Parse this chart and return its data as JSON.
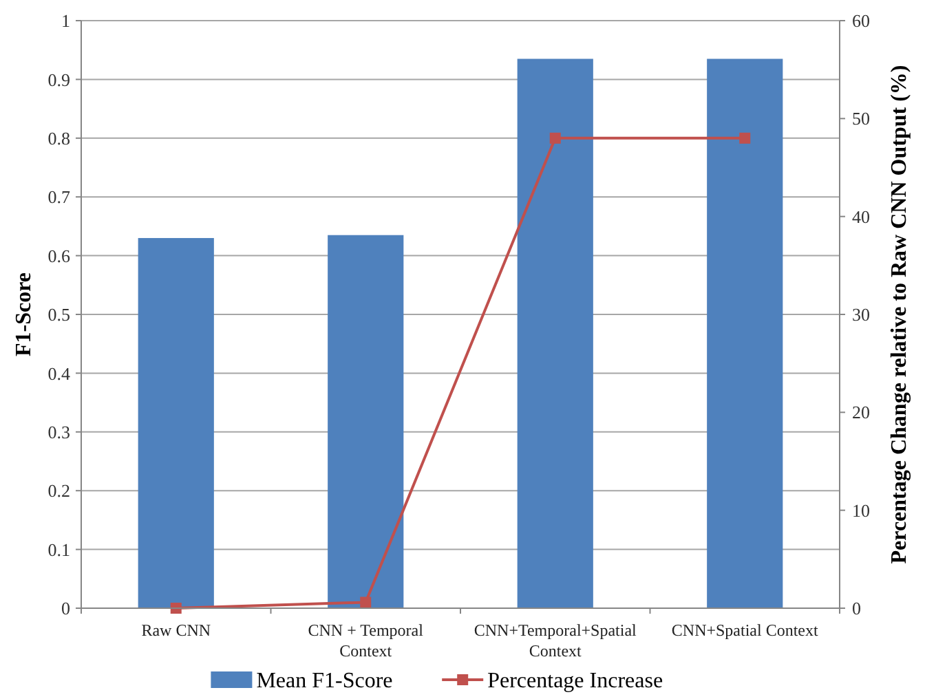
{
  "chart_data": {
    "type": "bar",
    "ylabel": "F1-Score",
    "y2label": "Percentage Change relative to Raw CNN Output (%)",
    "categories": [
      "Raw CNN",
      "CNN + Temporal Context",
      "CNN+Temporal+Spatial Context",
      "CNN+Spatial Context"
    ],
    "series": [
      {
        "name": "Mean F1-Score",
        "color": "#4f81bd",
        "values": [
          0.63,
          0.635,
          0.935,
          0.935
        ]
      },
      {
        "name": "Percentage Increase",
        "type": "line",
        "axis": "y2",
        "color": "#c0504d",
        "marker": "square",
        "values": [
          0,
          0.6,
          48,
          48
        ]
      }
    ],
    "ylim": [
      0,
      1
    ],
    "yticks": [
      0,
      0.1,
      0.2,
      0.3,
      0.4,
      0.5,
      0.6,
      0.7,
      0.8,
      0.9,
      1
    ],
    "y2lim": [
      0,
      60
    ],
    "y2ticks": [
      0,
      10,
      20,
      30,
      40,
      50,
      60
    ],
    "grid": "y",
    "legend": "bottom"
  }
}
